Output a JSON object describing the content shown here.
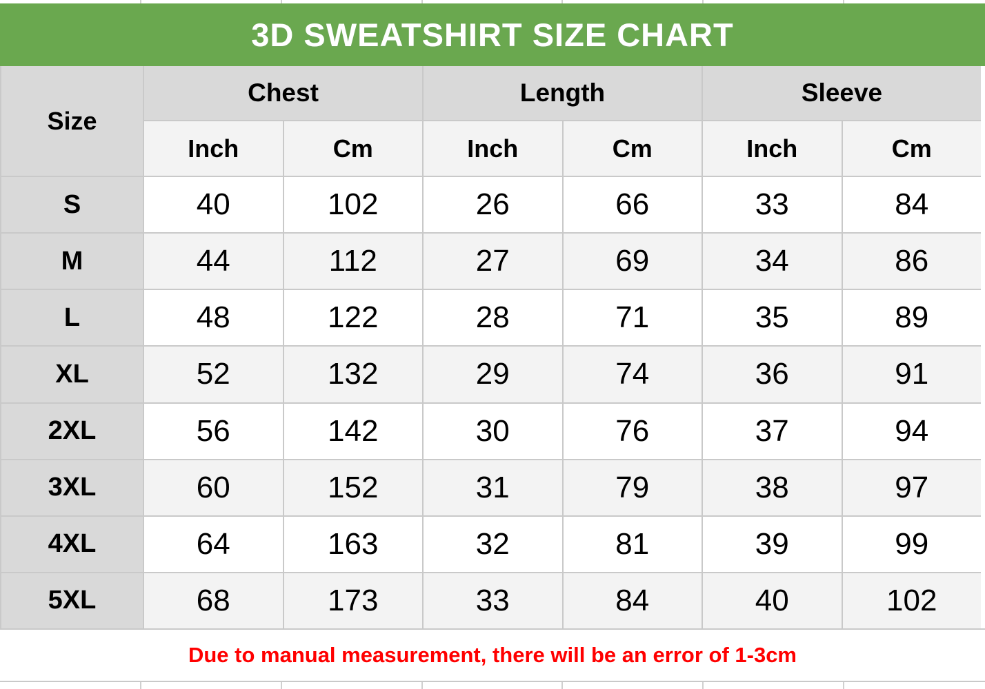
{
  "title": "3D SWEATSHIRT SIZE CHART",
  "note": "Due to manual measurement, there will be an error of 1-3cm",
  "colors": {
    "title_bar_green": "#6aa84f",
    "title_text": "#ffffff",
    "header_gray": "#d9d9d9",
    "subheader_gray": "#f3f3f3",
    "alt_row_gray": "#f3f3f3",
    "gridline": "#c9c9c9",
    "note_red": "#ff0000"
  },
  "table": {
    "size_header": "Size",
    "groups": [
      {
        "label": "Chest",
        "sub": [
          "Inch",
          "Cm"
        ]
      },
      {
        "label": "Length",
        "sub": [
          "Inch",
          "Cm"
        ]
      },
      {
        "label": "Sleeve",
        "sub": [
          "Inch",
          "Cm"
        ]
      }
    ],
    "rows": [
      {
        "size": "S",
        "chest_inch": "40",
        "chest_cm": "102",
        "length_inch": "26",
        "length_cm": "66",
        "sleeve_inch": "33",
        "sleeve_cm": "84"
      },
      {
        "size": "M",
        "chest_inch": "44",
        "chest_cm": "112",
        "length_inch": "27",
        "length_cm": "69",
        "sleeve_inch": "34",
        "sleeve_cm": "86"
      },
      {
        "size": "L",
        "chest_inch": "48",
        "chest_cm": "122",
        "length_inch": "28",
        "length_cm": "71",
        "sleeve_inch": "35",
        "sleeve_cm": "89"
      },
      {
        "size": "XL",
        "chest_inch": "52",
        "chest_cm": "132",
        "length_inch": "29",
        "length_cm": "74",
        "sleeve_inch": "36",
        "sleeve_cm": "91"
      },
      {
        "size": "2XL",
        "chest_inch": "56",
        "chest_cm": "142",
        "length_inch": "30",
        "length_cm": "76",
        "sleeve_inch": "37",
        "sleeve_cm": "94"
      },
      {
        "size": "3XL",
        "chest_inch": "60",
        "chest_cm": "152",
        "length_inch": "31",
        "length_cm": "79",
        "sleeve_inch": "38",
        "sleeve_cm": "97"
      },
      {
        "size": "4XL",
        "chest_inch": "64",
        "chest_cm": "163",
        "length_inch": "32",
        "length_cm": "81",
        "sleeve_inch": "39",
        "sleeve_cm": "99"
      },
      {
        "size": "5XL",
        "chest_inch": "68",
        "chest_cm": "173",
        "length_inch": "33",
        "length_cm": "84",
        "sleeve_inch": "40",
        "sleeve_cm": "102"
      }
    ]
  },
  "chart_data": {
    "type": "table",
    "title": "3D SWEATSHIRT SIZE CHART",
    "column_groups": [
      "Chest",
      "Length",
      "Sleeve"
    ],
    "columns": [
      "Size",
      "Chest Inch",
      "Chest Cm",
      "Length Inch",
      "Length Cm",
      "Sleeve Inch",
      "Sleeve Cm"
    ],
    "rows": [
      [
        "S",
        40,
        102,
        26,
        66,
        33,
        84
      ],
      [
        "M",
        44,
        112,
        27,
        69,
        34,
        86
      ],
      [
        "L",
        48,
        122,
        28,
        71,
        35,
        89
      ],
      [
        "XL",
        52,
        132,
        29,
        74,
        36,
        91
      ],
      [
        "2XL",
        56,
        142,
        30,
        76,
        37,
        94
      ],
      [
        "3XL",
        60,
        152,
        31,
        79,
        38,
        97
      ],
      [
        "4XL",
        64,
        163,
        32,
        81,
        39,
        99
      ],
      [
        "5XL",
        68,
        173,
        33,
        84,
        40,
        102
      ]
    ],
    "footnote": "Due to manual measurement, there will be an error of 1-3cm"
  }
}
